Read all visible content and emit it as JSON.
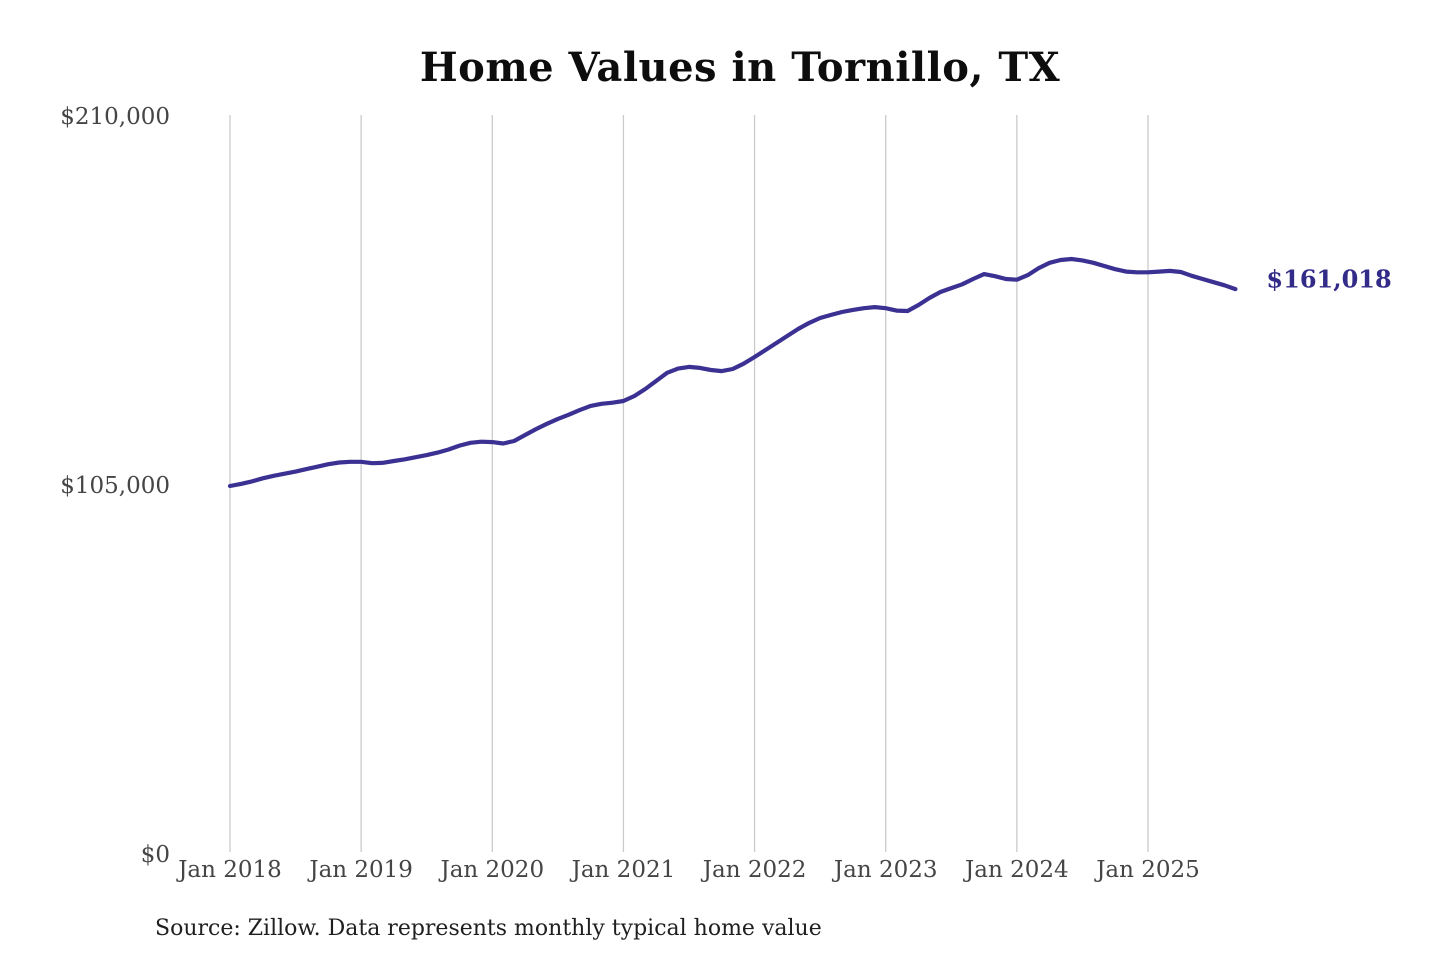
{
  "title": "Home Values in Tornillo, TX",
  "source": {
    "text": "Source: Zillow. Data represents monthly typical home value"
  },
  "colors": {
    "line": "#3b3192",
    "end_label": "#322b87",
    "grid": "#cbcbcb",
    "axis_text": "#454545",
    "title_text": "#0d0d0d",
    "source_text": "#1f1f1f",
    "background": "#ffffff"
  },
  "chart_data": {
    "type": "line",
    "title": "Home Values in Tornillo, TX",
    "xlabel": "",
    "ylabel": "",
    "ylim": [
      0,
      210000
    ],
    "grid": "vertical-only",
    "legend": "none",
    "x_unit": "month",
    "x_start": "Jan 2018",
    "x_end": "Sep 2025",
    "x_tick_labels": [
      "Jan 2018",
      "Jan 2019",
      "Jan 2020",
      "Jan 2021",
      "Jan 2022",
      "Jan 2023",
      "Jan 2024",
      "Jan 2025"
    ],
    "x_tick_month_indices": [
      0,
      12,
      24,
      36,
      48,
      60,
      72,
      84
    ],
    "y_ticks": [
      {
        "value": 0,
        "label": "$0"
      },
      {
        "value": 105000,
        "label": "$105,000"
      },
      {
        "value": 210000,
        "label": "$210,000"
      }
    ],
    "final_value": 161018,
    "final_value_label": "$161,018",
    "series": [
      {
        "name": "Typical home value",
        "months": [
          "2018-01",
          "2018-02",
          "2018-03",
          "2018-04",
          "2018-05",
          "2018-06",
          "2018-07",
          "2018-08",
          "2018-09",
          "2018-10",
          "2018-11",
          "2018-12",
          "2019-01",
          "2019-02",
          "2019-03",
          "2019-04",
          "2019-05",
          "2019-06",
          "2019-07",
          "2019-08",
          "2019-09",
          "2019-10",
          "2019-11",
          "2019-12",
          "2020-01",
          "2020-02",
          "2020-03",
          "2020-04",
          "2020-05",
          "2020-06",
          "2020-07",
          "2020-08",
          "2020-09",
          "2020-10",
          "2020-11",
          "2020-12",
          "2021-01",
          "2021-02",
          "2021-03",
          "2021-04",
          "2021-05",
          "2021-06",
          "2021-07",
          "2021-08",
          "2021-09",
          "2021-10",
          "2021-11",
          "2021-12",
          "2022-01",
          "2022-02",
          "2022-03",
          "2022-04",
          "2022-05",
          "2022-06",
          "2022-07",
          "2022-08",
          "2022-09",
          "2022-10",
          "2022-11",
          "2022-12",
          "2023-01",
          "2023-02",
          "2023-03",
          "2023-04",
          "2023-05",
          "2023-06",
          "2023-07",
          "2023-08",
          "2023-09",
          "2023-10",
          "2023-11",
          "2023-12",
          "2024-01",
          "2024-02",
          "2024-03",
          "2024-04",
          "2024-05",
          "2024-06",
          "2024-07",
          "2024-08",
          "2024-09",
          "2024-10",
          "2024-11",
          "2024-12",
          "2025-01",
          "2025-02",
          "2025-03",
          "2025-04",
          "2025-05",
          "2025-06",
          "2025-07",
          "2025-08",
          "2025-09"
        ],
        "values": [
          105000,
          105600,
          106300,
          107200,
          107900,
          108500,
          109100,
          109800,
          110500,
          111200,
          111700,
          111900,
          111900,
          111500,
          111600,
          112100,
          112600,
          113200,
          113800,
          114500,
          115400,
          116500,
          117300,
          117600,
          117500,
          117100,
          117800,
          119500,
          121200,
          122700,
          124100,
          125300,
          126600,
          127800,
          128400,
          128700,
          129200,
          130600,
          132600,
          134900,
          137200,
          138400,
          138900,
          138600,
          138000,
          137700,
          138300,
          139800,
          141700,
          143700,
          145700,
          147700,
          149700,
          151400,
          152800,
          153700,
          154500,
          155100,
          155600,
          155900,
          155600,
          154900,
          154800,
          156500,
          158500,
          160200,
          161300,
          162400,
          163900,
          165300,
          164700,
          163900,
          163700,
          165000,
          167000,
          168500,
          169300,
          169600,
          169200,
          168500,
          167600,
          166700,
          166000,
          165800,
          165800,
          166000,
          166200,
          165900,
          164800,
          163900,
          163000,
          162100,
          161018
        ]
      }
    ]
  }
}
